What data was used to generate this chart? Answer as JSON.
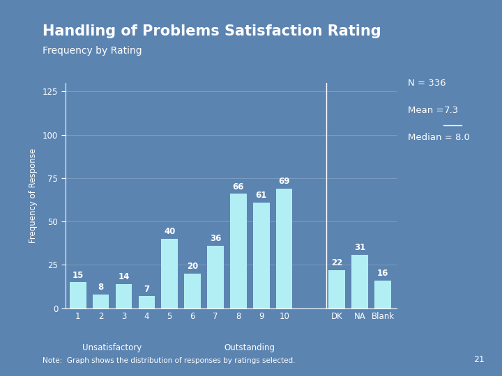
{
  "title": "Handling of Problems Satisfaction Rating",
  "subtitle": "Frequency by Rating",
  "categories": [
    "1",
    "2",
    "3",
    "4",
    "5",
    "6",
    "7",
    "8",
    "9",
    "10",
    "DK",
    "NA",
    "Blank"
  ],
  "values": [
    15,
    8,
    14,
    7,
    40,
    20,
    36,
    66,
    61,
    69,
    22,
    31,
    16
  ],
  "bar_color": "#b2eff5",
  "bg_color": "#5b84b1",
  "dark_strip_color": "#1a1a2e",
  "title_color": "#ffffff",
  "text_color": "#ffffff",
  "ylabel": "Frequency of Response",
  "ylim": [
    0,
    130
  ],
  "yticks": [
    0,
    25,
    50,
    75,
    100,
    125
  ],
  "stats_n": "N = 336",
  "stats_mean_label": "Mean = ",
  "stats_mean_value": "7.3",
  "stats_median": "Median = 8.0",
  "xlabel_left": "Unsatisfactory",
  "xlabel_right": "Outstanding",
  "note": "Note:  Graph shows the distribution of responses by ratings selected.",
  "page_num": "21",
  "title_fontsize": 15,
  "subtitle_fontsize": 10,
  "label_fontsize": 8.5,
  "tick_fontsize": 8.5,
  "stats_fontsize": 9.5
}
